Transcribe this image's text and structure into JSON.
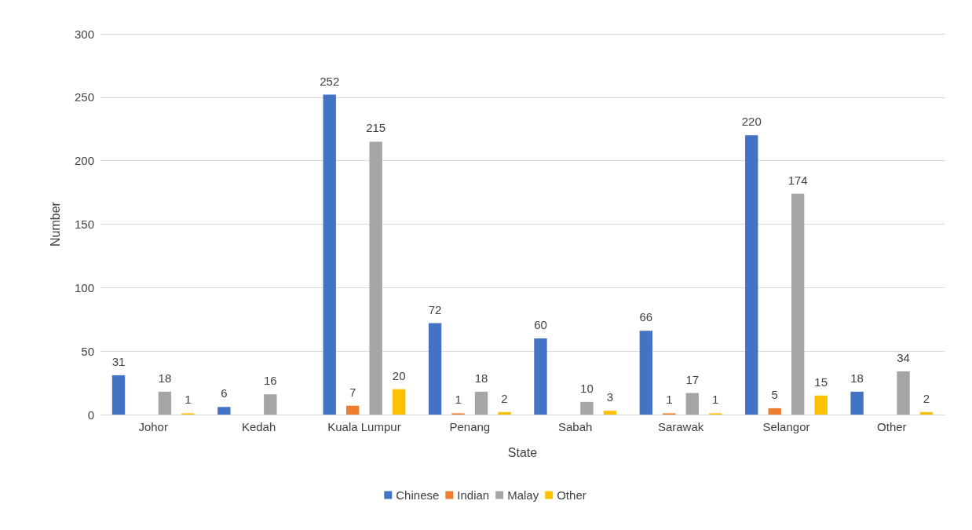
{
  "chart_data": {
    "type": "bar",
    "xlabel": "State",
    "ylabel": "Number",
    "categories": [
      "Johor",
      "Kedah",
      "Kuala Lumpur",
      "Penang",
      "Sabah",
      "Sarawak",
      "Selangor",
      "Other"
    ],
    "series": [
      {
        "name": "Chinese",
        "color": "#4472c4",
        "values": [
          31,
          6,
          252,
          72,
          60,
          66,
          220,
          18
        ]
      },
      {
        "name": "Indian",
        "color": "#ed7d31",
        "values": [
          null,
          null,
          7,
          1,
          null,
          1,
          5,
          null
        ]
      },
      {
        "name": "Malay",
        "color": "#a5a5a5",
        "values": [
          18,
          16,
          215,
          18,
          10,
          17,
          174,
          34
        ]
      },
      {
        "name": "Other",
        "color": "#ffc000",
        "values": [
          1,
          null,
          20,
          2,
          3,
          1,
          15,
          2
        ]
      }
    ],
    "ylim": [
      0,
      300
    ],
    "yticks": [
      0,
      50,
      100,
      150,
      200,
      250,
      300
    ],
    "grid": "y",
    "legend": "bottom",
    "data_labels": true
  }
}
